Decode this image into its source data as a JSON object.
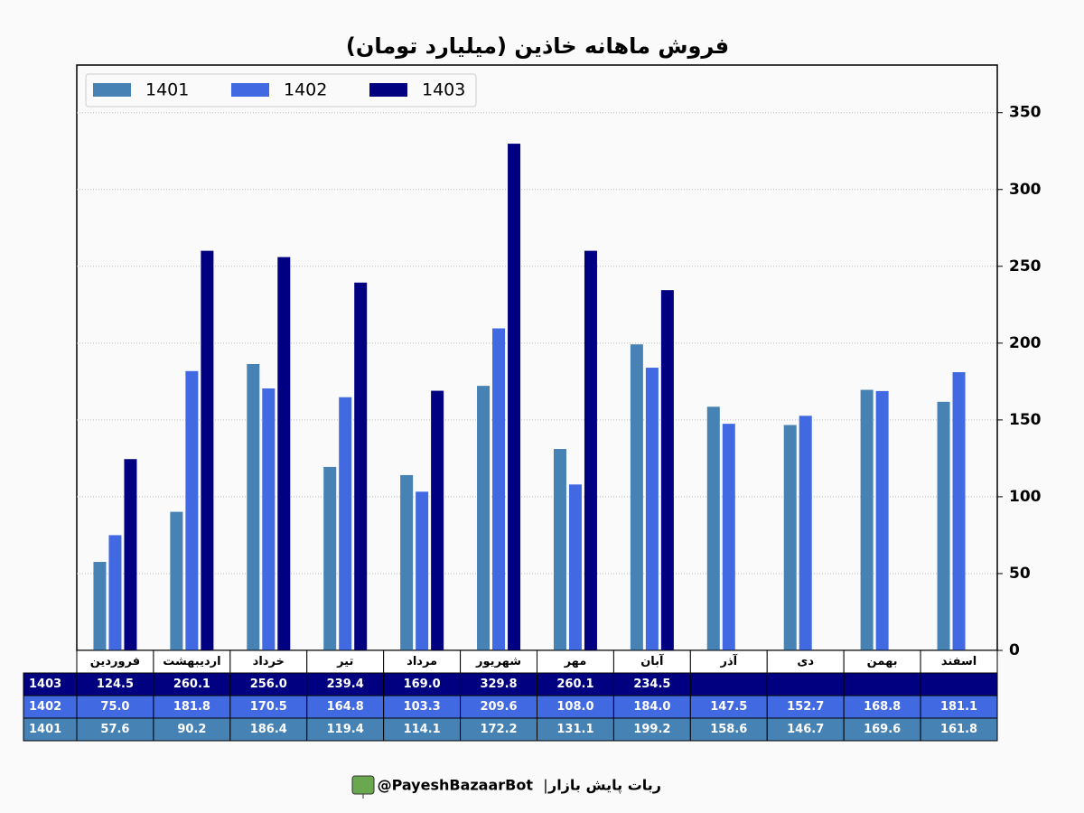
{
  "chart_data": {
    "type": "bar",
    "title": "فروش ماهانه خاذین (میلیارد تومان)",
    "categories": [
      "فروردین",
      "اردیبهشت",
      "خرداد",
      "تیر",
      "مرداد",
      "شهریور",
      "مهر",
      "آبان",
      "آذر",
      "دی",
      "بهمن",
      "اسفند"
    ],
    "series": [
      {
        "name": "1401",
        "color": "#4682b4",
        "values": [
          57.6,
          90.2,
          186.4,
          119.4,
          114.1,
          172.2,
          131.1,
          199.2,
          158.6,
          146.7,
          169.6,
          161.8
        ],
        "value_labels": [
          "57.6",
          "90.2",
          "186.4",
          "119.4",
          "114.1",
          "172.2",
          "131.1",
          "199.2",
          "158.6",
          "146.7",
          "169.6",
          "161.8"
        ]
      },
      {
        "name": "1402",
        "color": "#4169e1",
        "values": [
          75.0,
          181.8,
          170.5,
          164.8,
          103.3,
          209.6,
          108.0,
          184.0,
          147.5,
          152.7,
          168.8,
          181.1
        ],
        "value_labels": [
          "75.0",
          "181.8",
          "170.5",
          "164.8",
          "103.3",
          "209.6",
          "108.0",
          "184.0",
          "147.5",
          "152.7",
          "168.8",
          "181.1"
        ]
      },
      {
        "name": "1403",
        "color": "#000080",
        "values": [
          124.5,
          260.1,
          256.0,
          239.4,
          169.0,
          329.8,
          260.1,
          234.5,
          null,
          null,
          null,
          null
        ],
        "value_labels": [
          "124.5",
          "260.1",
          "256.0",
          "239.4",
          "169.0",
          "329.8",
          "260.1",
          "234.5",
          null,
          null,
          null,
          null
        ]
      }
    ],
    "ylim": [
      0,
      381
    ],
    "yticks": [
      0,
      50,
      100,
      150,
      200,
      250,
      300,
      350
    ],
    "grid": true,
    "legend": "upper left"
  },
  "footer": {
    "handle": "@PayeshBazaarBot",
    "separator": "|",
    "name": "ربات پایش بازار"
  }
}
